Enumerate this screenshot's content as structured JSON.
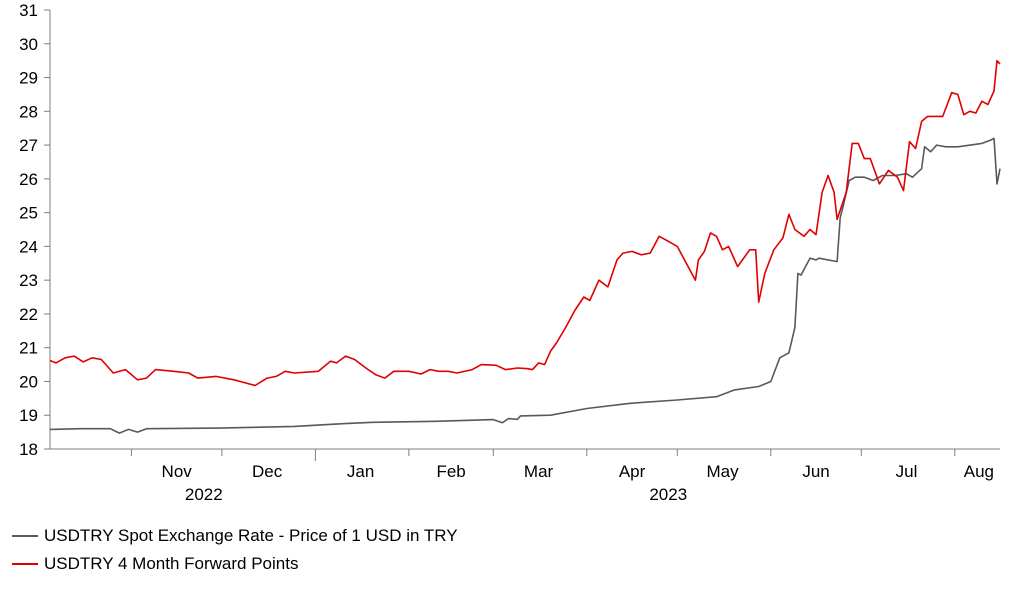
{
  "chart_data": {
    "type": "line",
    "yaxis": {
      "min": 18,
      "max": 31,
      "ticks": [
        18,
        19,
        20,
        21,
        22,
        23,
        24,
        25,
        26,
        27,
        28,
        29,
        30,
        31
      ]
    },
    "xaxis": {
      "start": "2022-10-05",
      "end": "2023-08-16",
      "month_labels": [
        {
          "label": "Nov",
          "date": "2022-11-16"
        },
        {
          "label": "Dec",
          "date": "2022-12-16"
        },
        {
          "label": "Jan",
          "date": "2023-01-16"
        },
        {
          "label": "Feb",
          "date": "2023-02-15"
        },
        {
          "label": "Mar",
          "date": "2023-03-16"
        },
        {
          "label": "Apr",
          "date": "2023-04-16"
        },
        {
          "label": "May",
          "date": "2023-05-16"
        },
        {
          "label": "Jun",
          "date": "2023-06-16"
        },
        {
          "label": "Jul",
          "date": "2023-07-16"
        },
        {
          "label": "Aug",
          "date": "2023-08-09"
        }
      ],
      "year_labels": [
        {
          "label": "2022",
          "date": "2022-11-25"
        },
        {
          "label": "2023",
          "date": "2023-04-28"
        }
      ],
      "major_ticks": [
        "2023-01-01"
      ],
      "minor_ticks": [
        "2022-11-01",
        "2022-12-01",
        "2023-02-01",
        "2023-03-01",
        "2023-04-01",
        "2023-05-01",
        "2023-06-01",
        "2023-07-01",
        "2023-08-01"
      ]
    },
    "legend": [
      "USDTRY Spot Exchange Rate - Price of 1 USD in TRY",
      "USDTRY 4 Month Forward Points"
    ],
    "series": [
      {
        "name": "USDTRY Spot Exchange Rate - Price of 1 USD in TRY",
        "color": "#595959",
        "points": [
          [
            "2022-10-05",
            18.58
          ],
          [
            "2022-10-15",
            18.6
          ],
          [
            "2022-10-25",
            18.6
          ],
          [
            "2022-10-28",
            18.47
          ],
          [
            "2022-10-31",
            18.58
          ],
          [
            "2022-11-03",
            18.5
          ],
          [
            "2022-11-06",
            18.6
          ],
          [
            "2022-11-30",
            18.62
          ],
          [
            "2022-12-25",
            18.67
          ],
          [
            "2023-01-10",
            18.75
          ],
          [
            "2023-01-20",
            18.79
          ],
          [
            "2023-02-10",
            18.82
          ],
          [
            "2023-03-01",
            18.87
          ],
          [
            "2023-03-04",
            18.78
          ],
          [
            "2023-03-06",
            18.9
          ],
          [
            "2023-03-09",
            18.88
          ],
          [
            "2023-03-10",
            18.98
          ],
          [
            "2023-03-20",
            19.0
          ],
          [
            "2023-04-01",
            19.2
          ],
          [
            "2023-04-15",
            19.35
          ],
          [
            "2023-05-01",
            19.45
          ],
          [
            "2023-05-14",
            19.55
          ],
          [
            "2023-05-20",
            19.75
          ],
          [
            "2023-05-28",
            19.85
          ],
          [
            "2023-06-01",
            20.0
          ],
          [
            "2023-06-04",
            20.7
          ],
          [
            "2023-06-07",
            20.85
          ],
          [
            "2023-06-09",
            21.6
          ],
          [
            "2023-06-10",
            23.2
          ],
          [
            "2023-06-11",
            23.15
          ],
          [
            "2023-06-14",
            23.65
          ],
          [
            "2023-06-16",
            23.6
          ],
          [
            "2023-06-17",
            23.65
          ],
          [
            "2023-06-23",
            23.55
          ],
          [
            "2023-06-24",
            24.85
          ],
          [
            "2023-06-25",
            25.2
          ],
          [
            "2023-06-27",
            25.95
          ],
          [
            "2023-06-29",
            26.05
          ],
          [
            "2023-07-02",
            26.05
          ],
          [
            "2023-07-05",
            25.95
          ],
          [
            "2023-07-08",
            26.1
          ],
          [
            "2023-07-12",
            26.1
          ],
          [
            "2023-07-16",
            26.15
          ],
          [
            "2023-07-18",
            26.05
          ],
          [
            "2023-07-21",
            26.3
          ],
          [
            "2023-07-22",
            26.95
          ],
          [
            "2023-07-24",
            26.8
          ],
          [
            "2023-07-26",
            27.0
          ],
          [
            "2023-07-29",
            26.95
          ],
          [
            "2023-08-02",
            26.95
          ],
          [
            "2023-08-10",
            27.05
          ],
          [
            "2023-08-13",
            27.15
          ],
          [
            "2023-08-14",
            27.2
          ],
          [
            "2023-08-15",
            25.85
          ],
          [
            "2023-08-16",
            26.3
          ]
        ]
      },
      {
        "name": "USDTRY 4 Month Forward Points",
        "color": "#e00000",
        "points": [
          [
            "2022-10-05",
            20.62
          ],
          [
            "2022-10-07",
            20.55
          ],
          [
            "2022-10-10",
            20.7
          ],
          [
            "2022-10-13",
            20.75
          ],
          [
            "2022-10-16",
            20.58
          ],
          [
            "2022-10-19",
            20.7
          ],
          [
            "2022-10-22",
            20.65
          ],
          [
            "2022-10-26",
            20.25
          ],
          [
            "2022-10-30",
            20.35
          ],
          [
            "2022-11-03",
            20.05
          ],
          [
            "2022-11-06",
            20.1
          ],
          [
            "2022-11-09",
            20.35
          ],
          [
            "2022-11-15",
            20.3
          ],
          [
            "2022-11-20",
            20.25
          ],
          [
            "2022-11-23",
            20.1
          ],
          [
            "2022-11-29",
            20.15
          ],
          [
            "2022-12-05",
            20.05
          ],
          [
            "2022-12-12",
            19.88
          ],
          [
            "2022-12-16",
            20.1
          ],
          [
            "2022-12-19",
            20.15
          ],
          [
            "2022-12-22",
            20.3
          ],
          [
            "2022-12-25",
            20.25
          ],
          [
            "2023-01-02",
            20.3
          ],
          [
            "2023-01-06",
            20.6
          ],
          [
            "2023-01-08",
            20.55
          ],
          [
            "2023-01-11",
            20.75
          ],
          [
            "2023-01-14",
            20.65
          ],
          [
            "2023-01-18",
            20.38
          ],
          [
            "2023-01-21",
            20.2
          ],
          [
            "2023-01-24",
            20.1
          ],
          [
            "2023-01-27",
            20.3
          ],
          [
            "2023-02-01",
            20.3
          ],
          [
            "2023-02-05",
            20.22
          ],
          [
            "2023-02-08",
            20.35
          ],
          [
            "2023-02-11",
            20.3
          ],
          [
            "2023-02-14",
            20.3
          ],
          [
            "2023-02-17",
            20.25
          ],
          [
            "2023-02-22",
            20.35
          ],
          [
            "2023-02-25",
            20.5
          ],
          [
            "2023-03-02",
            20.48
          ],
          [
            "2023-03-05",
            20.35
          ],
          [
            "2023-03-09",
            20.4
          ],
          [
            "2023-03-12",
            20.38
          ],
          [
            "2023-03-14",
            20.35
          ],
          [
            "2023-03-16",
            20.55
          ],
          [
            "2023-03-18",
            20.5
          ],
          [
            "2023-03-20",
            20.9
          ],
          [
            "2023-03-22",
            21.15
          ],
          [
            "2023-03-25",
            21.6
          ],
          [
            "2023-03-28",
            22.1
          ],
          [
            "2023-03-31",
            22.5
          ],
          [
            "2023-04-02",
            22.4
          ],
          [
            "2023-04-05",
            23.0
          ],
          [
            "2023-04-08",
            22.8
          ],
          [
            "2023-04-11",
            23.6
          ],
          [
            "2023-04-13",
            23.8
          ],
          [
            "2023-04-16",
            23.85
          ],
          [
            "2023-04-19",
            23.75
          ],
          [
            "2023-04-22",
            23.8
          ],
          [
            "2023-04-25",
            24.3
          ],
          [
            "2023-04-28",
            24.15
          ],
          [
            "2023-05-01",
            24.0
          ],
          [
            "2023-05-04",
            23.5
          ],
          [
            "2023-05-07",
            23.0
          ],
          [
            "2023-05-08",
            23.6
          ],
          [
            "2023-05-10",
            23.85
          ],
          [
            "2023-05-12",
            24.4
          ],
          [
            "2023-05-14",
            24.3
          ],
          [
            "2023-05-16",
            23.9
          ],
          [
            "2023-05-18",
            24.0
          ],
          [
            "2023-05-21",
            23.4
          ],
          [
            "2023-05-25",
            23.9
          ],
          [
            "2023-05-27",
            23.9
          ],
          [
            "2023-05-28",
            22.35
          ],
          [
            "2023-05-30",
            23.2
          ],
          [
            "2023-06-02",
            23.9
          ],
          [
            "2023-06-05",
            24.25
          ],
          [
            "2023-06-07",
            24.95
          ],
          [
            "2023-06-09",
            24.5
          ],
          [
            "2023-06-12",
            24.3
          ],
          [
            "2023-06-14",
            24.5
          ],
          [
            "2023-06-16",
            24.35
          ],
          [
            "2023-06-18",
            25.6
          ],
          [
            "2023-06-20",
            26.1
          ],
          [
            "2023-06-22",
            25.6
          ],
          [
            "2023-06-23",
            24.8
          ],
          [
            "2023-06-26",
            25.6
          ],
          [
            "2023-06-28",
            27.05
          ],
          [
            "2023-06-30",
            27.05
          ],
          [
            "2023-07-02",
            26.6
          ],
          [
            "2023-07-04",
            26.6
          ],
          [
            "2023-07-07",
            25.85
          ],
          [
            "2023-07-10",
            26.25
          ],
          [
            "2023-07-13",
            26.05
          ],
          [
            "2023-07-15",
            25.65
          ],
          [
            "2023-07-17",
            27.1
          ],
          [
            "2023-07-19",
            26.9
          ],
          [
            "2023-07-21",
            27.7
          ],
          [
            "2023-07-23",
            27.85
          ],
          [
            "2023-07-26",
            27.85
          ],
          [
            "2023-07-28",
            27.85
          ],
          [
            "2023-07-31",
            28.55
          ],
          [
            "2023-08-02",
            28.5
          ],
          [
            "2023-08-04",
            27.9
          ],
          [
            "2023-08-06",
            28.0
          ],
          [
            "2023-08-08",
            27.95
          ],
          [
            "2023-08-10",
            28.3
          ],
          [
            "2023-08-12",
            28.2
          ],
          [
            "2023-08-14",
            28.6
          ],
          [
            "2023-08-15",
            29.5
          ],
          [
            "2023-08-16",
            29.4
          ]
        ]
      }
    ]
  }
}
